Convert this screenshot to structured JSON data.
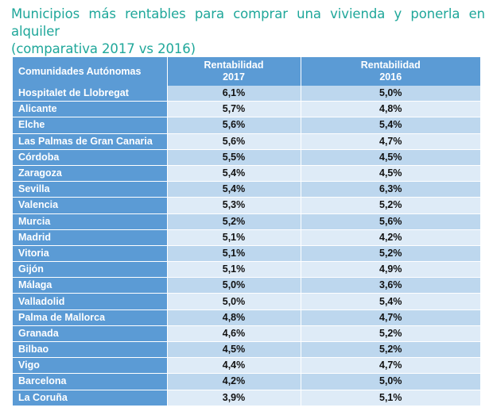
{
  "title": {
    "line1": "Municipios más rentables para comprar una vivienda y ponerla en alquiler",
    "line2": "(comparativa 2017 vs 2016)"
  },
  "chart_data": {
    "type": "table",
    "columns": [
      "Comunidades Autónomas",
      "Rentabilidad 2017",
      "Rentabilidad 2016"
    ],
    "header": {
      "name": "Comunidades Autónomas",
      "c2017_line1": "Rentabilidad",
      "c2017_line2": "2017",
      "c2016_line1": "Rentabilidad",
      "c2016_line2": "2016"
    },
    "rows": [
      {
        "name": "Hospitalet de Llobregat",
        "v2017": "6,1%",
        "v2016": "5,0%"
      },
      {
        "name": "Alicante",
        "v2017": "5,7%",
        "v2016": "4,8%"
      },
      {
        "name": "Elche",
        "v2017": "5,6%",
        "v2016": "5,4%"
      },
      {
        "name": "Las Palmas de Gran Canaria",
        "v2017": "5,6%",
        "v2016": "4,7%"
      },
      {
        "name": "Córdoba",
        "v2017": "5,5%",
        "v2016": "4,5%"
      },
      {
        "name": "Zaragoza",
        "v2017": "5,4%",
        "v2016": "4,5%"
      },
      {
        "name": "Sevilla",
        "v2017": "5,4%",
        "v2016": "6,3%"
      },
      {
        "name": "Valencia",
        "v2017": "5,3%",
        "v2016": "5,2%"
      },
      {
        "name": "Murcia",
        "v2017": "5,2%",
        "v2016": "5,6%"
      },
      {
        "name": "Madrid",
        "v2017": "5,1%",
        "v2016": "4,2%"
      },
      {
        "name": "Vitoria",
        "v2017": "5,1%",
        "v2016": "5,2%"
      },
      {
        "name": "Gijón",
        "v2017": "5,1%",
        "v2016": "4,9%"
      },
      {
        "name": "Málaga",
        "v2017": "5,0%",
        "v2016": "3,6%"
      },
      {
        "name": "Valladolid",
        "v2017": "5,0%",
        "v2016": "5,4%"
      },
      {
        "name": "Palma de Mallorca",
        "v2017": "4,8%",
        "v2016": "4,7%"
      },
      {
        "name": "Granada",
        "v2017": "4,6%",
        "v2016": "5,2%"
      },
      {
        "name": "Bilbao",
        "v2017": "4,5%",
        "v2016": "5,2%"
      },
      {
        "name": "Vigo",
        "v2017": "4,4%",
        "v2016": "4,7%"
      },
      {
        "name": "Barcelona",
        "v2017": "4,2%",
        "v2016": "5,0%"
      },
      {
        "name": "La Coruña",
        "v2017": "3,9%",
        "v2016": "5,1%"
      }
    ]
  },
  "colors": {
    "title": "#1fa79a",
    "header_bg": "#5b9bd5",
    "row_odd": "#bdd7ee",
    "row_even": "#deebf7"
  }
}
